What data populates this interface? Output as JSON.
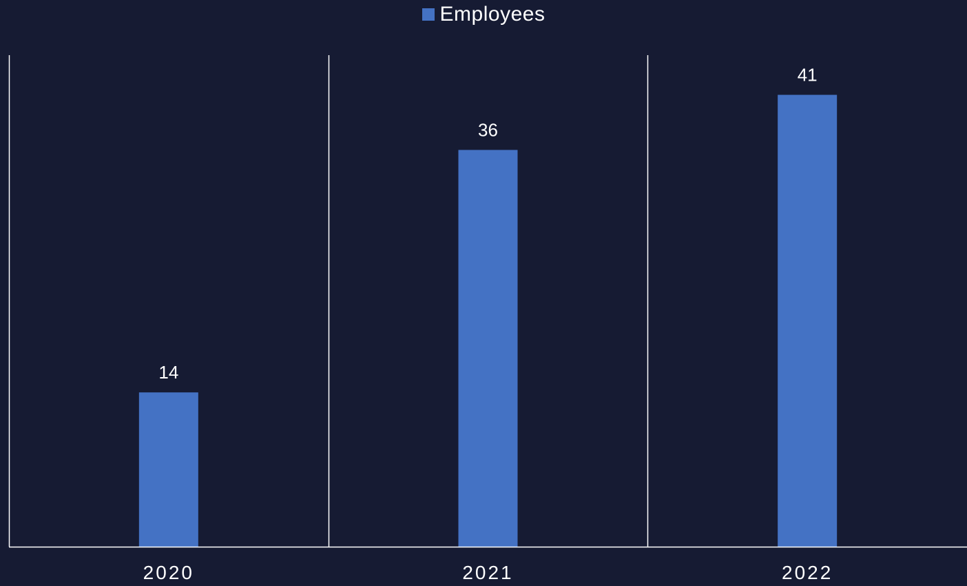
{
  "chart_data": {
    "type": "bar",
    "categories": [
      "2020",
      "2021",
      "2022"
    ],
    "series": [
      {
        "name": "Employees",
        "values": [
          14,
          36,
          41
        ]
      }
    ],
    "title": "",
    "xlabel": "",
    "ylabel": "",
    "ylim": [
      0,
      44.6
    ],
    "legend": "top-center",
    "grid": "vertical-separators",
    "data_labels": true
  },
  "colors": {
    "background": "#161b33",
    "bar": "#4472c4",
    "axis": "#ffffff",
    "text": "#ffffff"
  }
}
